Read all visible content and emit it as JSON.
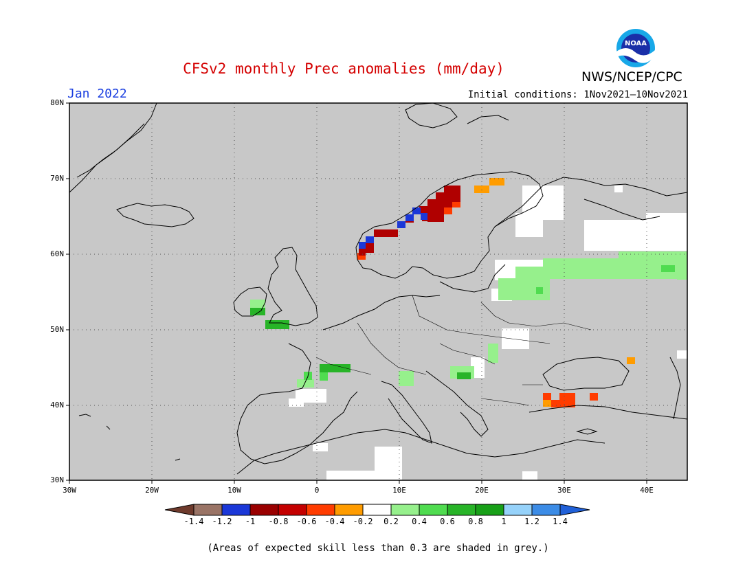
{
  "header": {
    "title": "CFSv2 monthly Prec anomalies (mm/day)",
    "agency": "NWS/NCEP/CPC",
    "period": "Jan 2022",
    "initial_conditions": "Initial conditions: 1Nov2021—10Nov2021"
  },
  "logo": {
    "text": "NOAA",
    "icon": "noaa-logo"
  },
  "footnote": "(Areas of expected skill less than 0.3 are shaded in grey.)",
  "map": {
    "lon_range": [
      -30,
      45
    ],
    "lat_range": [
      30,
      80
    ],
    "lat_labels": [
      "80N",
      "70N",
      "60N",
      "50N",
      "40N",
      "30N"
    ],
    "lon_labels": [
      "30W",
      "20W",
      "10W",
      "0",
      "10E",
      "20E",
      "30E",
      "40E"
    ],
    "grid": "dotted",
    "skill_shading": "grey"
  },
  "colorbar": {
    "labels": [
      "-1.4",
      "-1.2",
      "-1",
      "-0.8",
      "-0.6",
      "-0.4",
      "-0.2",
      "0.2",
      "0.4",
      "0.6",
      "0.8",
      "1",
      "1.2",
      "1.4"
    ],
    "colors": [
      "#6e3a2c",
      "#9a7466",
      "#1b38d8",
      "#9a0000",
      "#c40000",
      "#ff3c00",
      "#ff9c00",
      "#ffffff",
      "#96f08c",
      "#50dc50",
      "#28b428",
      "#18a018",
      "#96d2fa",
      "#3c8ce6",
      "#2060d8"
    ]
  },
  "anomalies": {
    "dark_red_norway": "-0.8 to -1",
    "blue_norway": "-1 to -1.2",
    "orange_lapland": "-0.2 to -0.4",
    "red_anatolia": "-0.4 to -0.6",
    "green_baltic": "0.2 to 0.4",
    "green_ireland": "0.4 to 0.8",
    "white_zones": "-0.2 to 0.2"
  }
}
